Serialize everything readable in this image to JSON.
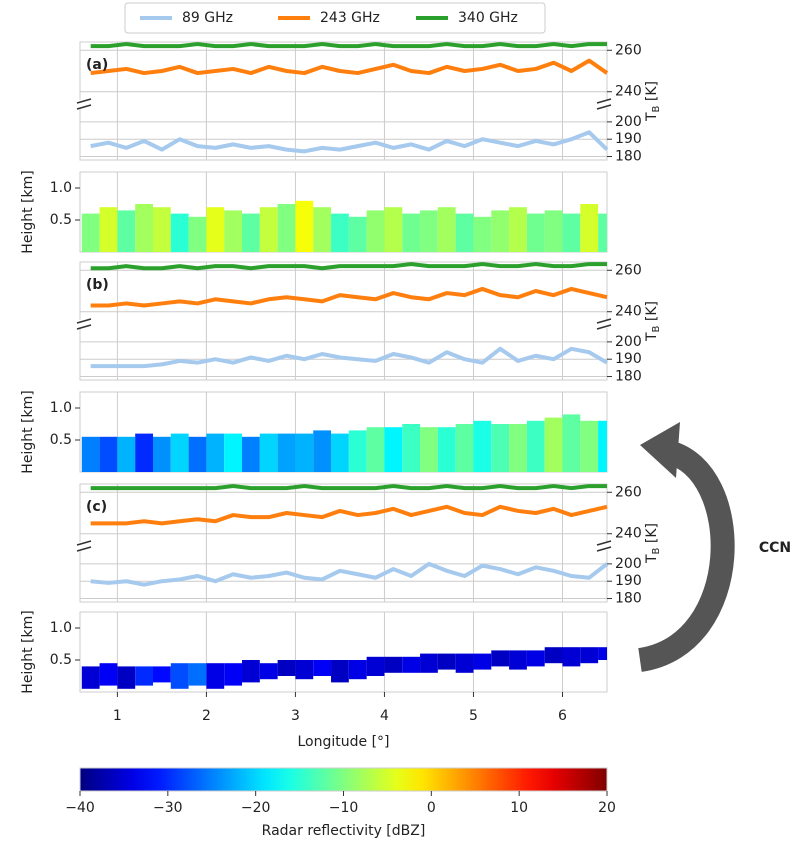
{
  "annotation": "CCN",
  "chart_data": [
    {
      "type": "line",
      "label": "(a)",
      "legend": "top",
      "x": [
        0.7,
        0.9,
        1.1,
        1.3,
        1.5,
        1.7,
        1.9,
        2.1,
        2.3,
        2.5,
        2.7,
        2.9,
        3.1,
        3.3,
        3.5,
        3.7,
        3.9,
        4.1,
        4.3,
        4.5,
        4.7,
        4.9,
        5.1,
        5.3,
        5.5,
        5.7,
        5.9,
        6.1,
        6.3,
        6.5
      ],
      "xlim": [
        0.58,
        6.5
      ],
      "xticks": [
        1,
        2,
        3,
        4,
        5,
        6
      ],
      "ylim": [
        236,
        264
      ],
      "yticks": [
        240,
        260
      ],
      "y2lim": [
        178,
        208
      ],
      "y2ticks": [
        180,
        190,
        200
      ],
      "ylabel": [
        "T",
        "B",
        " [K]"
      ],
      "grid": true,
      "series": [
        {
          "name": "89 GHz",
          "color": "#a6c9ee",
          "axis": "y2",
          "values": [
            186,
            188,
            185,
            189,
            184,
            190,
            186,
            185,
            187,
            185,
            186,
            184,
            183,
            185,
            184,
            186,
            188,
            185,
            187,
            184,
            189,
            186,
            190,
            188,
            186,
            189,
            187,
            190,
            194,
            184
          ]
        },
        {
          "name": "243 GHz",
          "color": "#ff7f0e",
          "values": [
            249,
            250,
            251,
            249,
            250,
            252,
            249,
            250,
            251,
            249,
            252,
            250,
            249,
            252,
            250,
            249,
            251,
            253,
            250,
            249,
            252,
            250,
            251,
            253,
            250,
            251,
            254,
            250,
            255,
            249
          ]
        },
        {
          "name": "340 GHz",
          "color": "#2ca02c",
          "values": [
            262,
            262,
            263,
            262,
            262,
            262,
            263,
            262,
            262,
            263,
            262,
            262,
            262,
            263,
            262,
            262,
            263,
            262,
            262,
            262,
            263,
            262,
            262,
            263,
            262,
            262,
            263,
            262,
            263,
            263
          ]
        }
      ]
    },
    {
      "type": "curtain",
      "ylabel": "Height [km]",
      "ylim": [
        0,
        1.25
      ],
      "yticks": [
        0.5,
        {
          "value": 1,
          "label": "1.0"
        }
      ],
      "x": [
        0.7,
        0.9,
        1.1,
        1.3,
        1.5,
        1.7,
        1.9,
        2.1,
        2.3,
        2.5,
        2.7,
        2.9,
        3.1,
        3.3,
        3.5,
        3.7,
        3.9,
        4.1,
        4.3,
        4.5,
        4.7,
        4.9,
        5.1,
        5.3,
        5.5,
        5.7,
        5.9,
        6.1,
        6.3,
        6.5
      ],
      "xlim": [
        0.58,
        6.5
      ],
      "xticks": [
        1,
        2,
        3,
        4,
        5,
        6
      ],
      "clim": [
        -40,
        20
      ],
      "top": [
        0.6,
        0.7,
        0.65,
        0.75,
        0.7,
        0.6,
        0.55,
        0.7,
        0.65,
        0.6,
        0.7,
        0.75,
        0.8,
        0.7,
        0.6,
        0.55,
        0.65,
        0.7,
        0.6,
        0.65,
        0.7,
        0.6,
        0.55,
        0.65,
        0.7,
        0.6,
        0.65,
        0.6,
        0.75,
        0.6
      ],
      "base": [
        0,
        0,
        0,
        0,
        0,
        0,
        0,
        0,
        0,
        0,
        0,
        0,
        0,
        0,
        0,
        0,
        0,
        0,
        0,
        0,
        0,
        0,
        0,
        0,
        0,
        0,
        0,
        0,
        0,
        0
      ],
      "dbz": [
        -10,
        -5,
        -12,
        -8,
        -6,
        -15,
        -10,
        -4,
        -8,
        -12,
        -6,
        -10,
        -3,
        -8,
        -14,
        -12,
        -9,
        -7,
        -11,
        -10,
        -8,
        -12,
        -10,
        -9,
        -7,
        -11,
        -10,
        -12,
        -5,
        -12
      ]
    },
    {
      "type": "line",
      "label": "(b)",
      "x": [
        0.7,
        0.9,
        1.1,
        1.3,
        1.5,
        1.7,
        1.9,
        2.1,
        2.3,
        2.5,
        2.7,
        2.9,
        3.1,
        3.3,
        3.5,
        3.7,
        3.9,
        4.1,
        4.3,
        4.5,
        4.7,
        4.9,
        5.1,
        5.3,
        5.5,
        5.7,
        5.9,
        6.1,
        6.3,
        6.5
      ],
      "xlim": [
        0.58,
        6.5
      ],
      "xticks": [
        1,
        2,
        3,
        4,
        5,
        6
      ],
      "ylim": [
        236,
        264
      ],
      "yticks": [
        240,
        260
      ],
      "y2lim": [
        178,
        208
      ],
      "y2ticks": [
        180,
        190,
        200
      ],
      "ylabel": [
        "T",
        "B",
        " [K]"
      ],
      "grid": true,
      "series": [
        {
          "color": "#a6c9ee",
          "axis": "y2",
          "values": [
            186,
            186,
            186,
            186,
            187,
            189,
            188,
            190,
            188,
            191,
            189,
            192,
            190,
            193,
            191,
            190,
            189,
            193,
            191,
            188,
            194,
            190,
            188,
            196,
            189,
            192,
            190,
            196,
            194,
            188
          ]
        },
        {
          "color": "#ff7f0e",
          "values": [
            243,
            243,
            244,
            243,
            244,
            245,
            244,
            246,
            245,
            244,
            246,
            247,
            246,
            245,
            248,
            247,
            246,
            249,
            247,
            246,
            249,
            248,
            251,
            248,
            247,
            250,
            248,
            251,
            249,
            247
          ]
        },
        {
          "color": "#2ca02c",
          "values": [
            261,
            261,
            262,
            261,
            261,
            262,
            261,
            262,
            262,
            261,
            262,
            262,
            262,
            261,
            262,
            262,
            262,
            262,
            263,
            262,
            262,
            262,
            263,
            262,
            262,
            263,
            262,
            262,
            263,
            263
          ]
        }
      ]
    },
    {
      "type": "curtain",
      "ylabel": "Height [km]",
      "ylim": [
        0,
        1.25
      ],
      "yticks": [
        0.5,
        {
          "value": 1,
          "label": "1.0"
        }
      ],
      "x": [
        0.7,
        0.9,
        1.1,
        1.3,
        1.5,
        1.7,
        1.9,
        2.1,
        2.3,
        2.5,
        2.7,
        2.9,
        3.1,
        3.3,
        3.5,
        3.7,
        3.9,
        4.1,
        4.3,
        4.5,
        4.7,
        4.9,
        5.1,
        5.3,
        5.5,
        5.7,
        5.9,
        6.1,
        6.3,
        6.5
      ],
      "xlim": [
        0.58,
        6.5
      ],
      "xticks": [
        1,
        2,
        3,
        4,
        5,
        6
      ],
      "clim": [
        -40,
        20
      ],
      "top": [
        0.55,
        0.55,
        0.55,
        0.6,
        0.55,
        0.6,
        0.55,
        0.6,
        0.6,
        0.55,
        0.6,
        0.6,
        0.6,
        0.65,
        0.6,
        0.65,
        0.7,
        0.7,
        0.75,
        0.7,
        0.7,
        0.75,
        0.8,
        0.75,
        0.75,
        0.8,
        0.85,
        0.9,
        0.8,
        0.8
      ],
      "base": [
        0,
        0,
        0,
        0,
        0,
        0,
        0,
        0,
        0,
        0,
        0,
        0,
        0,
        0,
        0,
        0,
        0,
        0,
        0,
        0,
        0,
        0,
        0,
        0,
        0,
        0,
        0,
        0,
        0,
        0
      ],
      "dbz": [
        -25,
        -28,
        -22,
        -30,
        -24,
        -20,
        -26,
        -22,
        -18,
        -25,
        -20,
        -23,
        -22,
        -24,
        -20,
        -15,
        -12,
        -18,
        -14,
        -10,
        -15,
        -12,
        -16,
        -13,
        -10,
        -14,
        -8,
        -12,
        -10,
        -18
      ]
    },
    {
      "type": "line",
      "label": "(c)",
      "x": [
        0.7,
        0.9,
        1.1,
        1.3,
        1.5,
        1.7,
        1.9,
        2.1,
        2.3,
        2.5,
        2.7,
        2.9,
        3.1,
        3.3,
        3.5,
        3.7,
        3.9,
        4.1,
        4.3,
        4.5,
        4.7,
        4.9,
        5.1,
        5.3,
        5.5,
        5.7,
        5.9,
        6.1,
        6.3,
        6.5
      ],
      "xlim": [
        0.58,
        6.5
      ],
      "xticks": [
        1,
        2,
        3,
        4,
        5,
        6
      ],
      "ylim": [
        236,
        264
      ],
      "yticks": [
        240,
        260
      ],
      "y2lim": [
        178,
        208
      ],
      "y2ticks": [
        180,
        190,
        200
      ],
      "ylabel": [
        "T",
        "B",
        " [K]"
      ],
      "grid": true,
      "series": [
        {
          "color": "#a6c9ee",
          "axis": "y2",
          "values": [
            190,
            189,
            190,
            188,
            190,
            191,
            193,
            190,
            194,
            192,
            193,
            195,
            192,
            191,
            196,
            194,
            192,
            197,
            193,
            200,
            196,
            193,
            199,
            197,
            194,
            198,
            196,
            193,
            192,
            200
          ]
        },
        {
          "color": "#ff7f0e",
          "values": [
            245,
            245,
            245,
            246,
            245,
            246,
            247,
            246,
            249,
            248,
            248,
            250,
            249,
            248,
            251,
            249,
            250,
            252,
            249,
            251,
            253,
            250,
            249,
            253,
            251,
            250,
            252,
            249,
            251,
            253
          ]
        },
        {
          "color": "#2ca02c",
          "values": [
            262,
            262,
            262,
            262,
            262,
            262,
            262,
            262,
            263,
            262,
            262,
            262,
            263,
            262,
            262,
            262,
            262,
            263,
            262,
            262,
            263,
            262,
            262,
            263,
            262,
            262,
            263,
            262,
            263,
            263
          ]
        }
      ]
    },
    {
      "type": "curtain",
      "ylabel": "Height [km]",
      "ylim": [
        0,
        1.25
      ],
      "yticks": [
        0.5,
        {
          "value": 1,
          "label": "1.0"
        }
      ],
      "x": [
        0.7,
        0.9,
        1.1,
        1.3,
        1.5,
        1.7,
        1.9,
        2.1,
        2.3,
        2.5,
        2.7,
        2.9,
        3.1,
        3.3,
        3.5,
        3.7,
        3.9,
        4.1,
        4.3,
        4.5,
        4.7,
        4.9,
        5.1,
        5.3,
        5.5,
        5.7,
        5.9,
        6.1,
        6.3,
        6.5
      ],
      "xlim": [
        0.58,
        6.5
      ],
      "xticks": [
        1,
        2,
        3,
        4,
        5,
        6
      ],
      "xlabel": "Longitude [°]",
      "clim": [
        -40,
        20
      ],
      "top": [
        0.4,
        0.45,
        0.4,
        0.4,
        0.4,
        0.45,
        0.45,
        0.45,
        0.45,
        0.5,
        0.45,
        0.5,
        0.5,
        0.5,
        0.5,
        0.5,
        0.55,
        0.55,
        0.55,
        0.6,
        0.6,
        0.6,
        0.6,
        0.65,
        0.65,
        0.65,
        0.7,
        0.7,
        0.7,
        0.7
      ],
      "base": [
        0.05,
        0.1,
        0.05,
        0.1,
        0.15,
        0.05,
        0.1,
        0.05,
        0.1,
        0.15,
        0.2,
        0.25,
        0.2,
        0.25,
        0.15,
        0.2,
        0.25,
        0.3,
        0.3,
        0.3,
        0.35,
        0.3,
        0.35,
        0.4,
        0.35,
        0.4,
        0.45,
        0.4,
        0.45,
        0.5
      ],
      "dbz": [
        -35,
        -33,
        -36,
        -30,
        -32,
        -28,
        -26,
        -34,
        -33,
        -35,
        -34,
        -36,
        -35,
        -33,
        -36,
        -34,
        -35,
        -36,
        -34,
        -35,
        -36,
        -35,
        -34,
        -36,
        -35,
        -34,
        -36,
        -35,
        -35,
        -34
      ]
    },
    {
      "type": "colorbar",
      "xlim": [
        -40,
        20
      ],
      "xlabel": "Radar reflectivity [dBZ]",
      "xticks": [
        {
          "value": -40,
          "label": "−40"
        },
        {
          "value": -30,
          "label": "−30"
        },
        {
          "value": -20,
          "label": "−20"
        },
        {
          "value": -10,
          "label": "−10"
        },
        0,
        10,
        20
      ]
    }
  ]
}
